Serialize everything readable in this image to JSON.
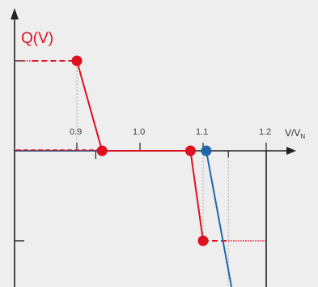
{
  "chart_data": {
    "type": "line",
    "title": "",
    "ylabel": "Q(V)",
    "xlabel": {
      "main": "V/V",
      "subscript": "N"
    },
    "x_ticks": [
      "0.9",
      "1.0",
      "1.1",
      "1.2"
    ],
    "x_tick_values": [
      0.9,
      1.0,
      1.1,
      1.2
    ],
    "grid": false,
    "legend": "none",
    "series": [
      {
        "color": "#dd1122",
        "points": [
          [
            0.9,
            1.0
          ],
          [
            0.94,
            0.0
          ],
          [
            1.08,
            0.0
          ],
          [
            1.1,
            -1.0
          ]
        ],
        "marker": "circle"
      },
      {
        "color": "#2266aa",
        "points": [
          [
            0.8,
            0.0
          ],
          [
            1.105,
            0.0
          ],
          [
            1.145,
            -1.5
          ]
        ],
        "marker_at": [
          1.105,
          0.0
        ]
      }
    ],
    "reference_levels": {
      "upper": 1.0,
      "lower": -1.0
    },
    "colors": {
      "axis": "#222222",
      "guide": "#999999"
    }
  }
}
